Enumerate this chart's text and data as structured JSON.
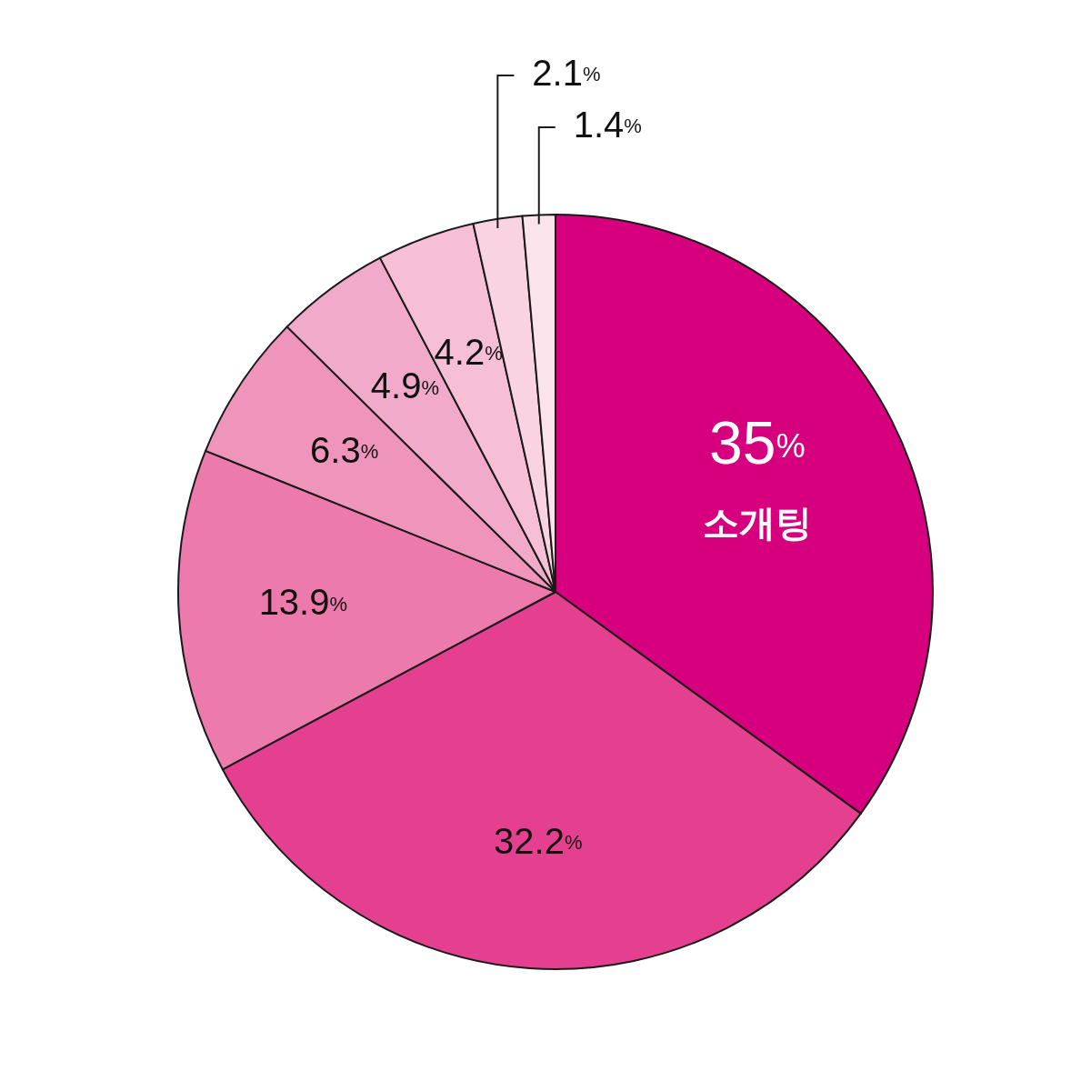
{
  "chart_data": {
    "type": "pie",
    "categories": [
      "소개팅",
      null,
      null,
      null,
      null,
      null,
      null,
      null
    ],
    "values": [
      35,
      32.2,
      13.9,
      6.3,
      4.9,
      4.2,
      2.1,
      1.4
    ],
    "value_labels": [
      "35%",
      "32.2%",
      "13.9%",
      "6.3%",
      "4.9%",
      "4.2%",
      "2.1%",
      "1.4%"
    ],
    "colors": [
      "#d6007f",
      "#e5408f",
      "#ec7aac",
      "#ef94bb",
      "#f2aacb",
      "#f6bfd6",
      "#f9d3e2",
      "#fbe3ec"
    ]
  }
}
